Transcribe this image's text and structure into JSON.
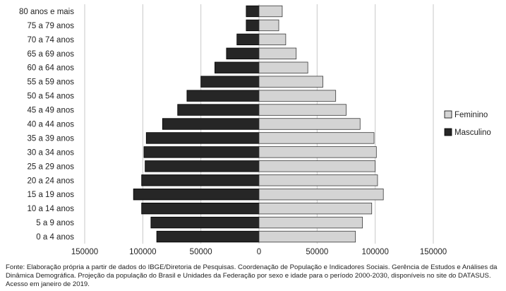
{
  "chart_data": {
    "type": "bar",
    "orientation": "horizontal",
    "chart_kind": "population-pyramid",
    "categories": [
      "80 anos e mais",
      "75 a 79 anos",
      "70 a 74 anos",
      "65 a 69 anos",
      "60 a 64 anos",
      "55 a 59 anos",
      "50 a 54 anos",
      "45 a 49 anos",
      "40 a 44 anos",
      "35 a 39 anos",
      "30 a 34 anos",
      "25 a 29 anos",
      "20 a 24 anos",
      "15 a 19 anos",
      "10 a 14 anos",
      "5 a 9 anos",
      "0 a 4 anos"
    ],
    "series": [
      {
        "name": "Feminino",
        "color": "#d4d4d4",
        "values": [
          20000,
          17000,
          23000,
          32000,
          42000,
          55000,
          66000,
          75000,
          87000,
          99000,
          101000,
          100000,
          102000,
          107000,
          97000,
          89000,
          83000
        ]
      },
      {
        "name": "Masculino",
        "color": "#262626",
        "values": [
          11000,
          11000,
          19000,
          28000,
          38000,
          50000,
          62000,
          70000,
          83000,
          97000,
          99000,
          98000,
          101000,
          108000,
          101000,
          93000,
          88000
        ]
      }
    ],
    "xlim": [
      -150000,
      150000
    ],
    "x_ticks": [
      -150000,
      -100000,
      -50000,
      0,
      50000,
      100000,
      150000
    ],
    "x_tick_labels": [
      "150000",
      "100000",
      "50000",
      "0",
      "50000",
      "100000",
      "150000"
    ],
    "grid": "vertical",
    "legend_position": "right"
  },
  "source_note": "Fonte:  Elaboração própria a partir de dados do  IBGE/Diretoria de Pesquisas. Coordenação de População e Indicadores Sociais. Gerência de Estudos e Análises da Dinâmica Demográfica. Projeção da população do Brasil e Unidades da Federação por sexo e idade para o período 2000-2030, disponíveis no site do DATASUS. Acesso em  janeiro de 2019."
}
